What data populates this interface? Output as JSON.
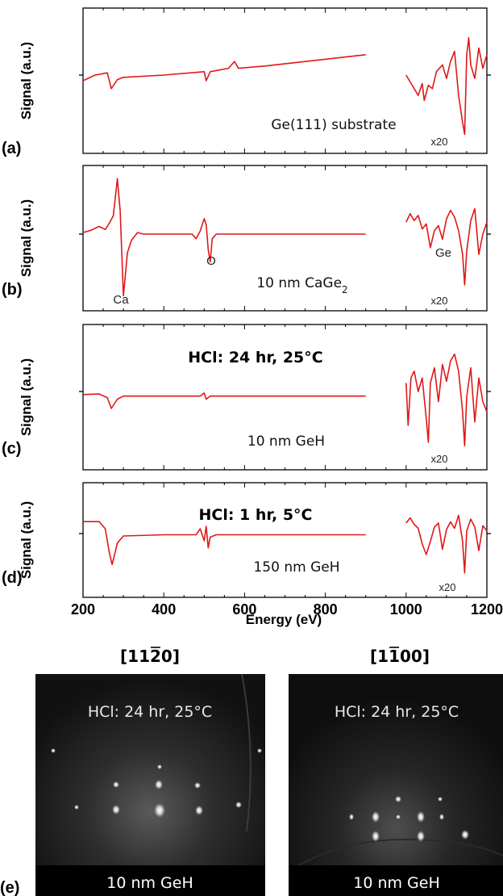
{
  "figure": {
    "x_axis": {
      "label": "Energy (eV)",
      "ticks": [
        "200",
        "400",
        "600",
        "800",
        "1000",
        "1200"
      ],
      "range": [
        200,
        1200
      ]
    },
    "y_axis_label": "Signal (a.u.)",
    "trace_color": "#e01818"
  },
  "chart_data": [
    {
      "type": "line",
      "panel": "(a)",
      "sample_label": "Ge(111) substrate",
      "condition": "",
      "magnification_label": "x20",
      "peak_labels": [],
      "xlabel": "Energy (eV)",
      "ylabel": "Signal (a.u.)",
      "xlim": [
        200,
        1200
      ],
      "segments": [
        {
          "x": [
            200,
            230,
            260,
            270,
            285,
            300,
            400,
            500,
            505,
            515,
            560,
            575,
            585,
            650,
            750,
            850,
            900
          ],
          "y": [
            -0.05,
            0.0,
            0.02,
            -0.12,
            -0.04,
            -0.02,
            0.0,
            0.03,
            -0.05,
            0.03,
            0.06,
            0.12,
            0.06,
            0.08,
            0.12,
            0.16,
            0.18
          ]
        },
        {
          "x": [
            1000,
            1010,
            1020,
            1030,
            1040,
            1045,
            1055,
            1065,
            1075,
            1090,
            1100,
            1110,
            1120,
            1130,
            1140,
            1145,
            1150,
            1155,
            1160,
            1170,
            1180,
            1190,
            1200
          ],
          "y": [
            0.0,
            -0.4,
            -0.8,
            -1.2,
            -0.5,
            -1.5,
            -0.6,
            -0.8,
            0.2,
            0.6,
            -0.2,
            0.8,
            1.4,
            -1.2,
            -2.8,
            -3.5,
            1.2,
            2.2,
            0.6,
            -0.2,
            1.6,
            0.4,
            1.2
          ]
        }
      ]
    },
    {
      "type": "line",
      "panel": "(b)",
      "sample_label": "10 nm CaGe",
      "sample_subscript": "2",
      "condition": "",
      "magnification_label": "x20",
      "peak_labels": [
        "Ca",
        "O",
        "Ge"
      ],
      "xlabel": "Energy (eV)",
      "ylabel": "Signal (a.u.)",
      "xlim": [
        200,
        1200
      ],
      "segments": [
        {
          "x": [
            200,
            220,
            240,
            255,
            265,
            275,
            285,
            292,
            300,
            310,
            320,
            335,
            350,
            400,
            470,
            480,
            490,
            500,
            505,
            510,
            515,
            520,
            530,
            600,
            700,
            800,
            900
          ],
          "y": [
            0.1,
            0.25,
            0.5,
            0.3,
            0.7,
            1.2,
            3.6,
            1.5,
            -4.0,
            -1.2,
            -0.4,
            0.1,
            0.0,
            0.0,
            0.0,
            -0.3,
            0.2,
            1.0,
            0.6,
            -1.0,
            -1.8,
            -0.3,
            0.0,
            0.0,
            0.0,
            0.0,
            0.0
          ]
        },
        {
          "x": [
            1000,
            1010,
            1020,
            1030,
            1040,
            1050,
            1060,
            1070,
            1080,
            1090,
            1100,
            1110,
            1120,
            1130,
            1140,
            1145,
            1150,
            1160,
            1170,
            1180,
            1190,
            1200
          ],
          "y": [
            0.7,
            1.2,
            0.8,
            1.1,
            0.3,
            0.6,
            -0.8,
            0.2,
            0.5,
            -0.3,
            0.9,
            1.4,
            1.0,
            0.2,
            -1.2,
            -3.0,
            -1.0,
            0.8,
            1.5,
            -1.2,
            0.0,
            0.7
          ]
        }
      ]
    },
    {
      "type": "line",
      "panel": "(c)",
      "sample_label": "10 nm GeH",
      "condition": "HCl: 24 hr, 25°C",
      "magnification_label": "x20",
      "peak_labels": [],
      "xlabel": "Energy (eV)",
      "ylabel": "Signal (a.u.)",
      "xlim": [
        200,
        1200
      ],
      "segments": [
        {
          "x": [
            200,
            240,
            260,
            270,
            285,
            300,
            400,
            490,
            500,
            505,
            515,
            600,
            700,
            800,
            900
          ],
          "y": [
            -0.1,
            -0.08,
            -0.2,
            -0.55,
            -0.25,
            -0.15,
            -0.15,
            -0.15,
            -0.05,
            -0.25,
            -0.15,
            -0.15,
            -0.15,
            -0.15,
            -0.15
          ]
        },
        {
          "x": [
            1000,
            1005,
            1012,
            1020,
            1030,
            1040,
            1050,
            1055,
            1060,
            1070,
            1080,
            1090,
            1100,
            1110,
            1120,
            1130,
            1140,
            1145,
            1150,
            1160,
            1170,
            1180,
            1190,
            1200
          ],
          "y": [
            0.5,
            -2.0,
            0.8,
            1.2,
            0.0,
            0.8,
            -1.6,
            -3.0,
            0.5,
            1.4,
            -0.6,
            1.6,
            0.6,
            1.8,
            2.2,
            1.2,
            -1.2,
            -3.2,
            -0.3,
            1.4,
            -1.8,
            0.8,
            -0.6,
            -1.2
          ]
        }
      ]
    },
    {
      "type": "line",
      "panel": "(d)",
      "sample_label": "150 nm GeH",
      "condition": "HCl: 1 hr, 5°C",
      "magnification_label": "x20",
      "peak_labels": [],
      "xlabel": "Energy (eV)",
      "ylabel": "Signal (a.u.)",
      "xlim": [
        200,
        1200
      ],
      "segments": [
        {
          "x": [
            200,
            240,
            255,
            265,
            272,
            285,
            300,
            400,
            480,
            490,
            500,
            505,
            510,
            515,
            530,
            600,
            700,
            800,
            900
          ],
          "y": [
            0.5,
            0.5,
            0.2,
            -0.8,
            -1.3,
            -0.4,
            -0.1,
            -0.05,
            -0.05,
            0.2,
            -0.3,
            0.3,
            -0.6,
            -0.15,
            -0.05,
            -0.05,
            -0.05,
            -0.05,
            -0.05
          ]
        },
        {
          "x": [
            1000,
            1010,
            1020,
            1030,
            1040,
            1050,
            1060,
            1070,
            1080,
            1090,
            1100,
            1110,
            1120,
            1130,
            1140,
            1145,
            1150,
            1160,
            1170,
            1180,
            1190,
            1200
          ],
          "y": [
            0.8,
            1.2,
            0.7,
            0.4,
            -0.8,
            -1.6,
            -0.6,
            0.5,
            0.8,
            -1.2,
            0.3,
            0.9,
            0.4,
            1.4,
            -0.6,
            -3.0,
            0.2,
            1.1,
            0.5,
            -1.3,
            0.6,
            0.2
          ]
        }
      ]
    }
  ],
  "rheed": {
    "panel": "(e)",
    "images": [
      {
        "direction": "[11",
        "direction_bar": "2",
        "direction_end": "0]",
        "condition": "HCl: 24 hr, 25°C",
        "sample": "10 nm GeH"
      },
      {
        "direction": "[1",
        "direction_bar": "1",
        "direction_end": "00]",
        "condition": "HCl: 24 hr, 25°C",
        "sample": "10 nm GeH"
      }
    ]
  }
}
